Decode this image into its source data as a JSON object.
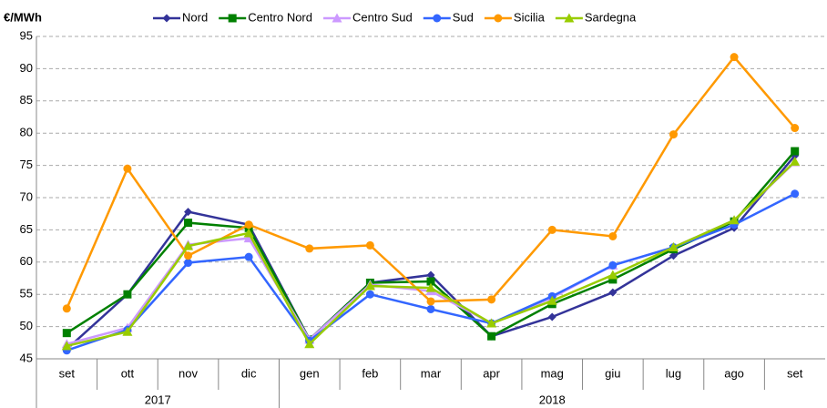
{
  "chart_data": {
    "type": "line",
    "y_label": "€/MWh",
    "categories": [
      "set",
      "ott",
      "nov",
      "dic",
      "gen",
      "feb",
      "mar",
      "apr",
      "mag",
      "giu",
      "lug",
      "ago",
      "set"
    ],
    "groups": [
      {
        "label": "2017",
        "count": 4
      },
      {
        "label": "2018",
        "count": 9
      }
    ],
    "ylim": [
      45,
      95
    ],
    "yticks": [
      45,
      50,
      55,
      60,
      65,
      70,
      75,
      80,
      85,
      90,
      95
    ],
    "grid": true,
    "legend": "top",
    "series": [
      {
        "name": "Nord",
        "color": "#333399",
        "marker": "diamond",
        "values": [
          46.5,
          55,
          67.8,
          65.8,
          48,
          56.8,
          58,
          48.5,
          51.5,
          55.3,
          61,
          65.3,
          76.5
        ]
      },
      {
        "name": "Centro Nord",
        "color": "#008000",
        "marker": "square",
        "values": [
          49,
          55,
          66.1,
          65.3,
          48,
          56.8,
          57,
          48.5,
          53.5,
          57.3,
          62,
          66.3,
          77.2
        ]
      },
      {
        "name": "Centro Sud",
        "color": "#cc99ff",
        "marker": "triangle",
        "values": [
          47.3,
          49.8,
          62.7,
          63.7,
          48,
          56.5,
          55.5,
          50.5,
          54.5,
          59.5,
          62.3,
          66.5,
          75.5
        ]
      },
      {
        "name": "Sud",
        "color": "#3366ff",
        "marker": "circle",
        "values": [
          46.3,
          49.5,
          59.9,
          60.8,
          47.8,
          55,
          52.7,
          50.5,
          54.7,
          59.5,
          62.3,
          65.8,
          70.6
        ]
      },
      {
        "name": "Sicilia",
        "color": "#ff9900",
        "marker": "circle",
        "values": [
          52.8,
          74.5,
          61,
          65.8,
          62.1,
          62.6,
          53.9,
          54.2,
          65,
          64,
          79.8,
          91.8,
          80.8
        ]
      },
      {
        "name": "Sardegna",
        "color": "#99cc00",
        "marker": "triangle",
        "values": [
          47,
          49.2,
          62.5,
          64.5,
          47.3,
          56.3,
          56,
          50.5,
          54,
          58,
          62.3,
          66.5,
          75.6
        ]
      }
    ]
  }
}
